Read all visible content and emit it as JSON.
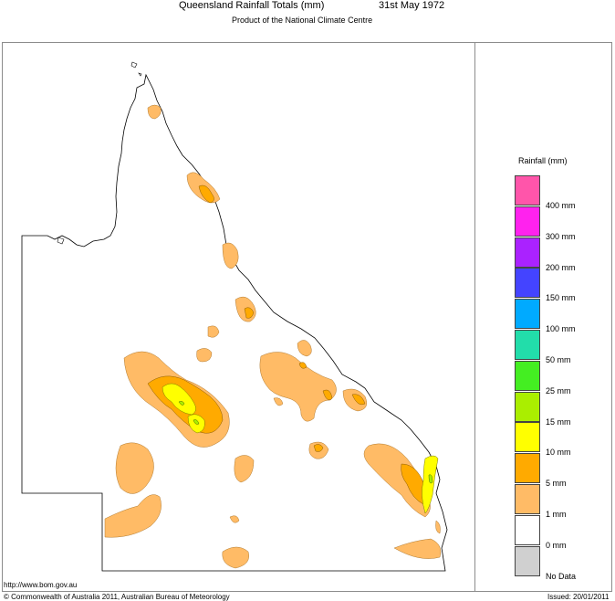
{
  "title": {
    "main": "Queensland Rainfall Totals (mm)",
    "date": "31st May 1972",
    "subtitle": "Product of the National Climate Centre"
  },
  "legend": {
    "title": "Rainfall (mm)",
    "items": [
      {
        "label": "400 mm",
        "color": "#ff55aa"
      },
      {
        "label": "300 mm",
        "color": "#ff22ee"
      },
      {
        "label": "200 mm",
        "color": "#aa22ff"
      },
      {
        "label": "150 mm",
        "color": "#4444ff"
      },
      {
        "label": "100 mm",
        "color": "#00aaff"
      },
      {
        "label": "50 mm",
        "color": "#22ddaa"
      },
      {
        "label": "25 mm",
        "color": "#44ee22"
      },
      {
        "label": "15 mm",
        "color": "#aaee00"
      },
      {
        "label": "10 mm",
        "color": "#ffff00"
      },
      {
        "label": "5 mm",
        "color": "#ffaa00"
      },
      {
        "label": "1 mm",
        "color": "#ffbb66"
      },
      {
        "label": "0 mm",
        "color": "#ffffff"
      },
      {
        "label": "No Data",
        "color": "#d0d0d0"
      }
    ]
  },
  "footer": {
    "url": "http://www.bom.gov.au",
    "copyright": "© Commonwealth of Australia 2011, Australian Bureau of Meteorology",
    "issued": "Issued: 20/01/2011"
  }
}
